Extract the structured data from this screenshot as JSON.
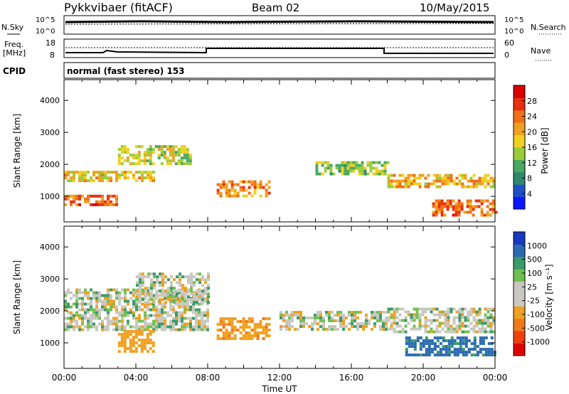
{
  "header": {
    "station": "Pykkvibaer (fitACF)",
    "beam": "Beam 02",
    "date": "10/May/2015"
  },
  "top_panels": {
    "nsky_label": "N.Sky",
    "nsky_ticks": [
      "10^5",
      "10^0"
    ],
    "nsearch_label": "N.Search",
    "nsearch_ticks": [
      "10^5",
      "10^0"
    ],
    "freq_label_1": "Freq.",
    "freq_label_2": "[MHz]",
    "freq_ticks": [
      18,
      8
    ],
    "nave_label": "Nave",
    "nave_ticks": [
      60,
      0
    ],
    "cpid_label": "CPID",
    "cpid_text": "normal (fast stereo) 153"
  },
  "colors": {
    "power": [
      "#0a18ff",
      "#2050c8",
      "#2e8a6a",
      "#4aa860",
      "#9acc3a",
      "#f0d020",
      "#f0a020",
      "#f07018",
      "#e83010",
      "#d80000"
    ],
    "velocity": [
      "#e00000",
      "#f04010",
      "#f07818",
      "#f0a020",
      "#c8c8c0",
      "#c8c8c0",
      "#70c050",
      "#3a9a6a",
      "#2a6ab0",
      "#1838c0"
    ]
  },
  "chart_data": [
    {
      "type": "heatmap",
      "quantity": "power",
      "ylabel": "Slant Range [km]",
      "ylim": [
        200,
        4650
      ],
      "yticks": [
        1000,
        2000,
        3000,
        4000
      ],
      "xlim": [
        0,
        24
      ],
      "colorbar": {
        "label": "Power [dB]",
        "range": [
          0,
          32
        ],
        "ticks": [
          4,
          8,
          12,
          16,
          20,
          24,
          28
        ]
      },
      "echo_bands": [
        {
          "t0": 0,
          "t1": 5,
          "r0": 1500,
          "r1": 1800,
          "level": 18
        },
        {
          "t0": 3,
          "t1": 7,
          "r0": 2000,
          "r1": 2600,
          "level": 16
        },
        {
          "t0": 0,
          "t1": 3,
          "r0": 750,
          "r1": 1050,
          "level": 24
        },
        {
          "t0": 8.5,
          "t1": 11.5,
          "r0": 1050,
          "r1": 1500,
          "level": 22
        },
        {
          "t0": 14,
          "t1": 18,
          "r0": 1700,
          "r1": 2100,
          "level": 14
        },
        {
          "t0": 18,
          "t1": 24,
          "r0": 1300,
          "r1": 1700,
          "level": 20
        },
        {
          "t0": 20.5,
          "t1": 24,
          "r0": 450,
          "r1": 900,
          "level": 24
        }
      ]
    },
    {
      "type": "heatmap",
      "quantity": "velocity",
      "ylabel": "Slant Range [km]",
      "ylim": [
        200,
        4650
      ],
      "yticks": [
        1000,
        2000,
        3000,
        4000
      ],
      "xlabel": "Time UT",
      "xticks": [
        "00:00",
        "04:00",
        "08:00",
        "12:00",
        "16:00",
        "20:00",
        "00:00"
      ],
      "xlim": [
        0,
        24
      ],
      "colorbar": {
        "label": "Velocity [m s⁻¹]",
        "ticks": [
          1000,
          500,
          100,
          25,
          -25,
          -100,
          -500,
          -1000
        ]
      },
      "echo_bands": [
        {
          "t0": 0,
          "t1": 8,
          "r0": 1400,
          "r1": 2700,
          "level": 0
        },
        {
          "t0": 4,
          "t1": 8,
          "r0": 2300,
          "r1": 3200,
          "level": 0
        },
        {
          "t0": 8.5,
          "t1": 11.5,
          "r0": 1100,
          "r1": 1800,
          "level": -400
        },
        {
          "t0": 3,
          "t1": 5,
          "r0": 700,
          "r1": 1400,
          "level": -300
        },
        {
          "t0": 12,
          "t1": 18,
          "r0": 1400,
          "r1": 2000,
          "level": 0
        },
        {
          "t0": 18,
          "t1": 24,
          "r0": 1300,
          "r1": 2100,
          "level": 0
        },
        {
          "t0": 19,
          "t1": 24,
          "r0": 600,
          "r1": 1200,
          "level": 600
        }
      ]
    }
  ]
}
